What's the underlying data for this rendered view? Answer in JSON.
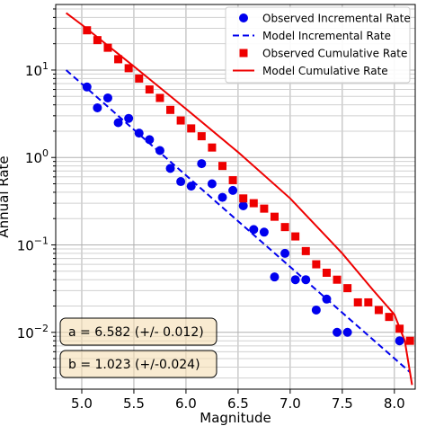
{
  "chart_data": {
    "type": "scatter",
    "title": "",
    "xlabel": "Magnitude",
    "ylabel": "Annual Rate",
    "xlim": [
      4.75,
      8.2
    ],
    "ylim_log10": [
      -2.65,
      1.75
    ],
    "yscale": "log",
    "grid": true,
    "legend_position": "top-right",
    "x_ticks": [
      "5.0",
      "5.5",
      "6.0",
      "6.5",
      "7.0",
      "7.5",
      "8.0"
    ],
    "x_tick_values": [
      5.0,
      5.5,
      6.0,
      6.5,
      7.0,
      7.5,
      8.0
    ],
    "y_ticks": [
      {
        "base": "10",
        "exp": "1",
        "value": 10
      },
      {
        "base": "10",
        "exp": "0",
        "value": 1
      },
      {
        "base": "10",
        "exp": "−1",
        "value": 0.1
      },
      {
        "base": "10",
        "exp": "−2",
        "value": 0.01
      }
    ],
    "series": [
      {
        "name": "Observed Incremental Rate",
        "kind": "markers",
        "marker": "circle",
        "color": "#0000ee",
        "x": [
          5.05,
          5.15,
          5.25,
          5.35,
          5.45,
          5.55,
          5.65,
          5.75,
          5.85,
          5.95,
          6.05,
          6.15,
          6.25,
          6.35,
          6.45,
          6.55,
          6.65,
          6.75,
          6.85,
          6.95,
          7.05,
          7.15,
          7.25,
          7.35,
          7.45,
          7.55,
          8.05
        ],
        "y": [
          6.4,
          3.7,
          4.8,
          2.5,
          2.8,
          1.9,
          1.6,
          1.2,
          0.75,
          0.53,
          0.47,
          0.85,
          0.5,
          0.35,
          0.42,
          0.28,
          0.15,
          0.14,
          0.043,
          0.08,
          0.04,
          0.04,
          0.018,
          0.024,
          0.01,
          0.01,
          0.008
        ]
      },
      {
        "name": "Model Incremental Rate",
        "kind": "line",
        "line_style": "dashed",
        "color": "#0000ee",
        "x": [
          4.85,
          8.15
        ],
        "y": [
          10.0,
          0.0035
        ]
      },
      {
        "name": "Observed Cumulative Rate",
        "kind": "markers",
        "marker": "square",
        "color": "#ee0000",
        "x": [
          5.05,
          5.15,
          5.25,
          5.35,
          5.45,
          5.55,
          5.65,
          5.75,
          5.85,
          5.95,
          6.05,
          6.15,
          6.25,
          6.35,
          6.45,
          6.55,
          6.65,
          6.75,
          6.85,
          6.95,
          7.05,
          7.15,
          7.25,
          7.35,
          7.45,
          7.55,
          7.65,
          7.75,
          7.85,
          7.95,
          8.05,
          8.15
        ],
        "y": [
          28.5,
          22.0,
          18.0,
          13.3,
          10.5,
          8.0,
          6.0,
          4.8,
          3.5,
          2.65,
          2.15,
          1.75,
          1.3,
          0.8,
          0.55,
          0.34,
          0.3,
          0.26,
          0.21,
          0.16,
          0.125,
          0.085,
          0.06,
          0.048,
          0.04,
          0.032,
          0.022,
          0.022,
          0.018,
          0.015,
          0.011,
          0.008
        ]
      },
      {
        "name": "Model Cumulative Rate",
        "kind": "line",
        "line_style": "solid",
        "color": "#ee0000",
        "x": [
          4.85,
          5.0,
          5.5,
          6.0,
          6.5,
          7.0,
          7.5,
          7.8,
          8.0,
          8.1,
          8.17
        ],
        "y": [
          45.0,
          33.0,
          11.0,
          3.6,
          1.15,
          0.34,
          0.08,
          0.03,
          0.016,
          0.008,
          0.0025
        ]
      }
    ],
    "annotations": [
      {
        "text": "a = 6.582 (+/- 0.012)"
      },
      {
        "text": "b = 1.023 (+/-0.024)"
      }
    ]
  }
}
